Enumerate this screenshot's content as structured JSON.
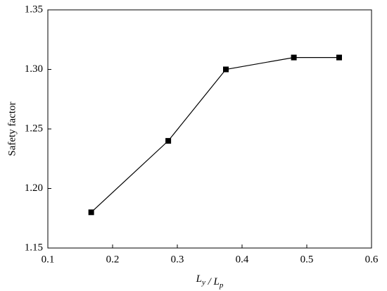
{
  "chart_data": {
    "type": "line",
    "x_label": "Ly / Lp",
    "y_label": "Safety factor",
    "series": [
      {
        "x": [
          0.167,
          0.286,
          0.375,
          0.48,
          0.55
        ],
        "values": [
          1.18,
          1.24,
          1.3,
          1.31,
          1.31
        ],
        "color": "#000000"
      }
    ],
    "xlim": [
      0.1,
      0.6
    ],
    "xticks": [
      0.1,
      0.2,
      0.3,
      0.4,
      0.5,
      0.6
    ],
    "ylim": [
      1.15,
      1.35
    ],
    "yticks": [
      1.15,
      {
        "value": 1.2,
        "label": "1.20"
      },
      1.25,
      {
        "value": 1.3,
        "label": "1.30"
      },
      1.35
    ],
    "grid": false,
    "marker": "square"
  }
}
